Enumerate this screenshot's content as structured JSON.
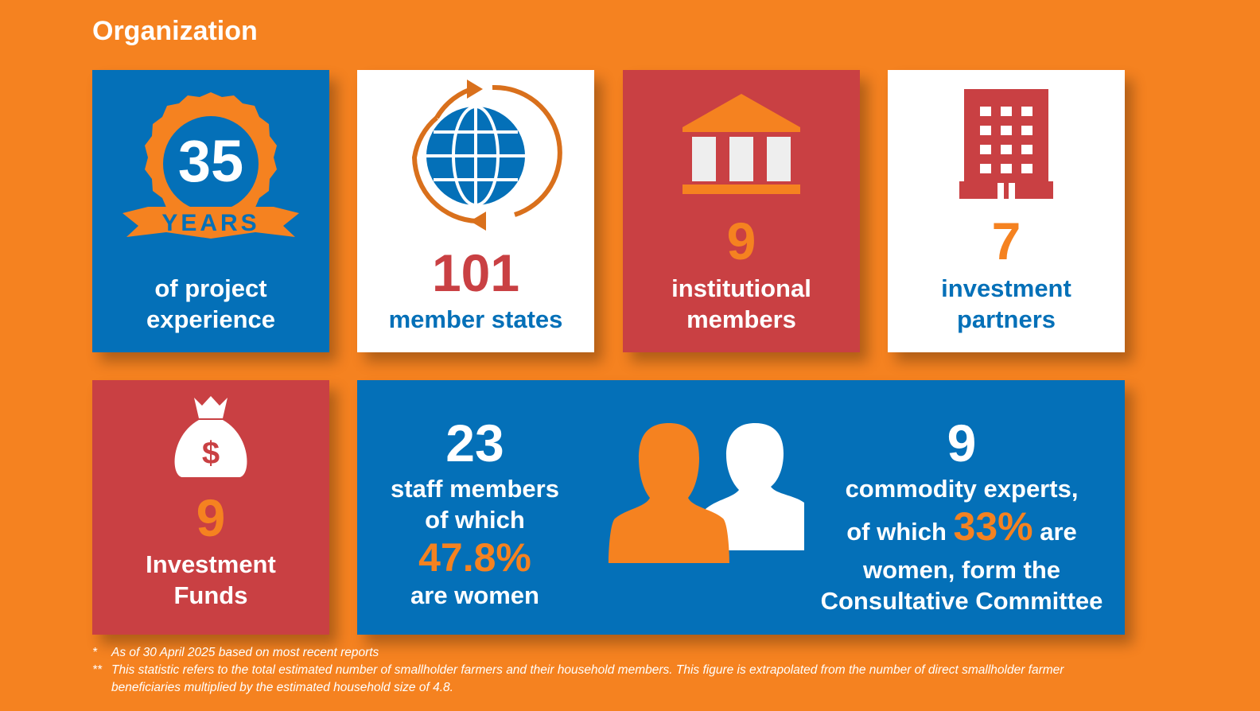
{
  "title": "Organization",
  "cards": [
    {
      "badge_number": 35,
      "badge_label": "YEARS",
      "lines": [
        "of project",
        "experience"
      ]
    },
    {
      "number": 101,
      "lines": [
        "member states"
      ]
    },
    {
      "number": 9,
      "lines": [
        "institutional",
        "members"
      ]
    },
    {
      "number": 7,
      "lines": [
        "investment",
        "partners"
      ]
    },
    {
      "number": 9,
      "lines": [
        "Investment",
        "Funds"
      ]
    }
  ],
  "staff": {
    "number": 23,
    "lines": [
      "staff members",
      "of which"
    ],
    "highlight": "47.8%",
    "after": "are women"
  },
  "experts": {
    "number": 9,
    "line1": "commodity experts,",
    "before": "of which",
    "highlight": "33%",
    "after": "are",
    "lines": [
      "women, form the",
      "Consultative Committee"
    ]
  },
  "footnotes": [
    {
      "mark": "*",
      "text": "As of 30 April 2025 based on most recent reports"
    },
    {
      "mark": "**",
      "text": "This statistic refers to the total estimated number of smallholder farmers and their household members. This figure is extrapolated from the number of direct smallholder farmer beneficiaries multiplied by the estimated household size of 4.8."
    }
  ]
}
